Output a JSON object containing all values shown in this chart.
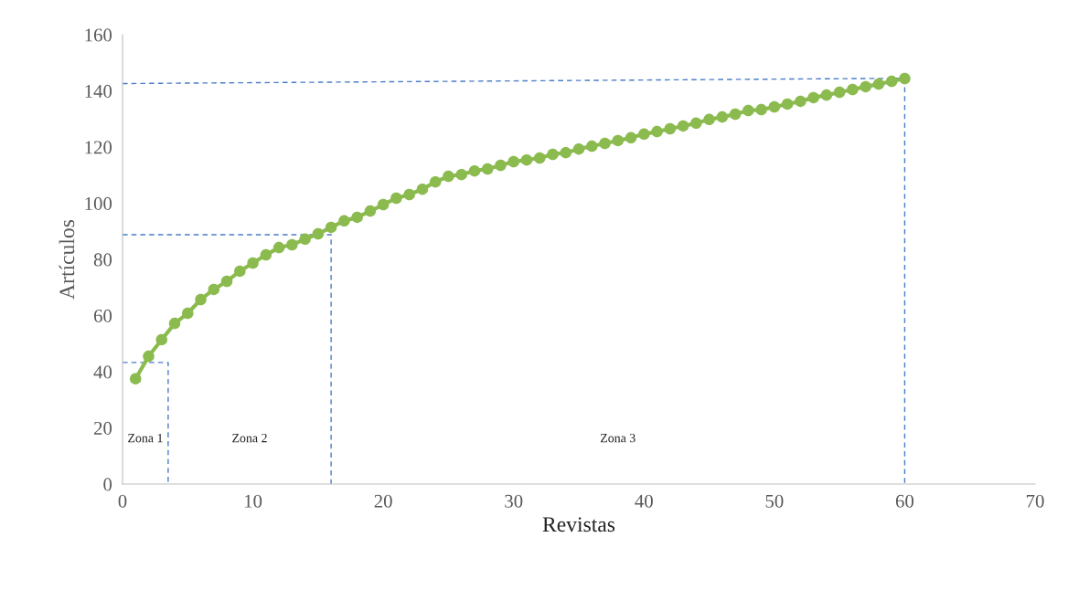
{
  "chart_data": {
    "type": "line",
    "xlabel": "Revistas",
    "ylabel": "Artículos",
    "xlim": [
      0,
      70
    ],
    "xticks": [
      0,
      10,
      20,
      30,
      40,
      50,
      60,
      70
    ],
    "ylim": [
      0,
      160
    ],
    "yticks": [
      0,
      20,
      40,
      60,
      80,
      100,
      120,
      140,
      160
    ],
    "grid": false,
    "legend": false,
    "marker": "circle",
    "line_style": "solid",
    "x": [
      1,
      2,
      3,
      4,
      5,
      6,
      7,
      8,
      9,
      10,
      11,
      12,
      13,
      14,
      15,
      16,
      17,
      18,
      19,
      20,
      21,
      22,
      23,
      24,
      25,
      26,
      27,
      28,
      29,
      30,
      31,
      32,
      33,
      34,
      35,
      36,
      37,
      38,
      39,
      40,
      41,
      42,
      43,
      44,
      45,
      46,
      47,
      48,
      49,
      50,
      51,
      52,
      53,
      54,
      55,
      56,
      57,
      58,
      59,
      60
    ],
    "series": [
      {
        "color": "#8bbb4f",
        "values": [
          37.5,
          45.5,
          51.4,
          57.2,
          60.8,
          65.7,
          69.3,
          72.2,
          75.8,
          78.7,
          81.6,
          84.2,
          85.2,
          87.2,
          89.1,
          91.4,
          93.7,
          95,
          97.2,
          99.5,
          101.8,
          103.1,
          105,
          107.6,
          109.6,
          110.2,
          111.5,
          112.2,
          113.5,
          114.8,
          115.4,
          116.1,
          117.4,
          118,
          119.3,
          120.3,
          121.3,
          122.3,
          123.3,
          124.6,
          125.5,
          126.5,
          127.5,
          128.5,
          129.8,
          130.7,
          131.7,
          133,
          133.3,
          134.3,
          135.3,
          136.3,
          137.6,
          138.5,
          139.5,
          140.5,
          141.5,
          142.4,
          143.4,
          144.4
        ]
      },
      {
        "type": "line",
        "color": "#4a7cc7",
        "line_style": "dashed",
        "marker": "none",
        "x": [
          0,
          3.5,
          3.5
        ],
        "values": [
          43.3,
          43.3,
          0
        ]
      },
      {
        "type": "line",
        "color": "#4a7cc7",
        "line_style": "dashed",
        "marker": "none",
        "x": [
          0,
          16,
          16
        ],
        "values": [
          88.8,
          88.8,
          0
        ]
      },
      {
        "type": "line",
        "color": "#4a7cc7",
        "line_style": "dashed",
        "marker": "none",
        "x": [
          0,
          60,
          60
        ],
        "values": [
          142.6,
          144.5,
          0
        ]
      }
    ],
    "annotations": [
      "Zona 1",
      "Zona 2",
      "Zona 3"
    ]
  }
}
